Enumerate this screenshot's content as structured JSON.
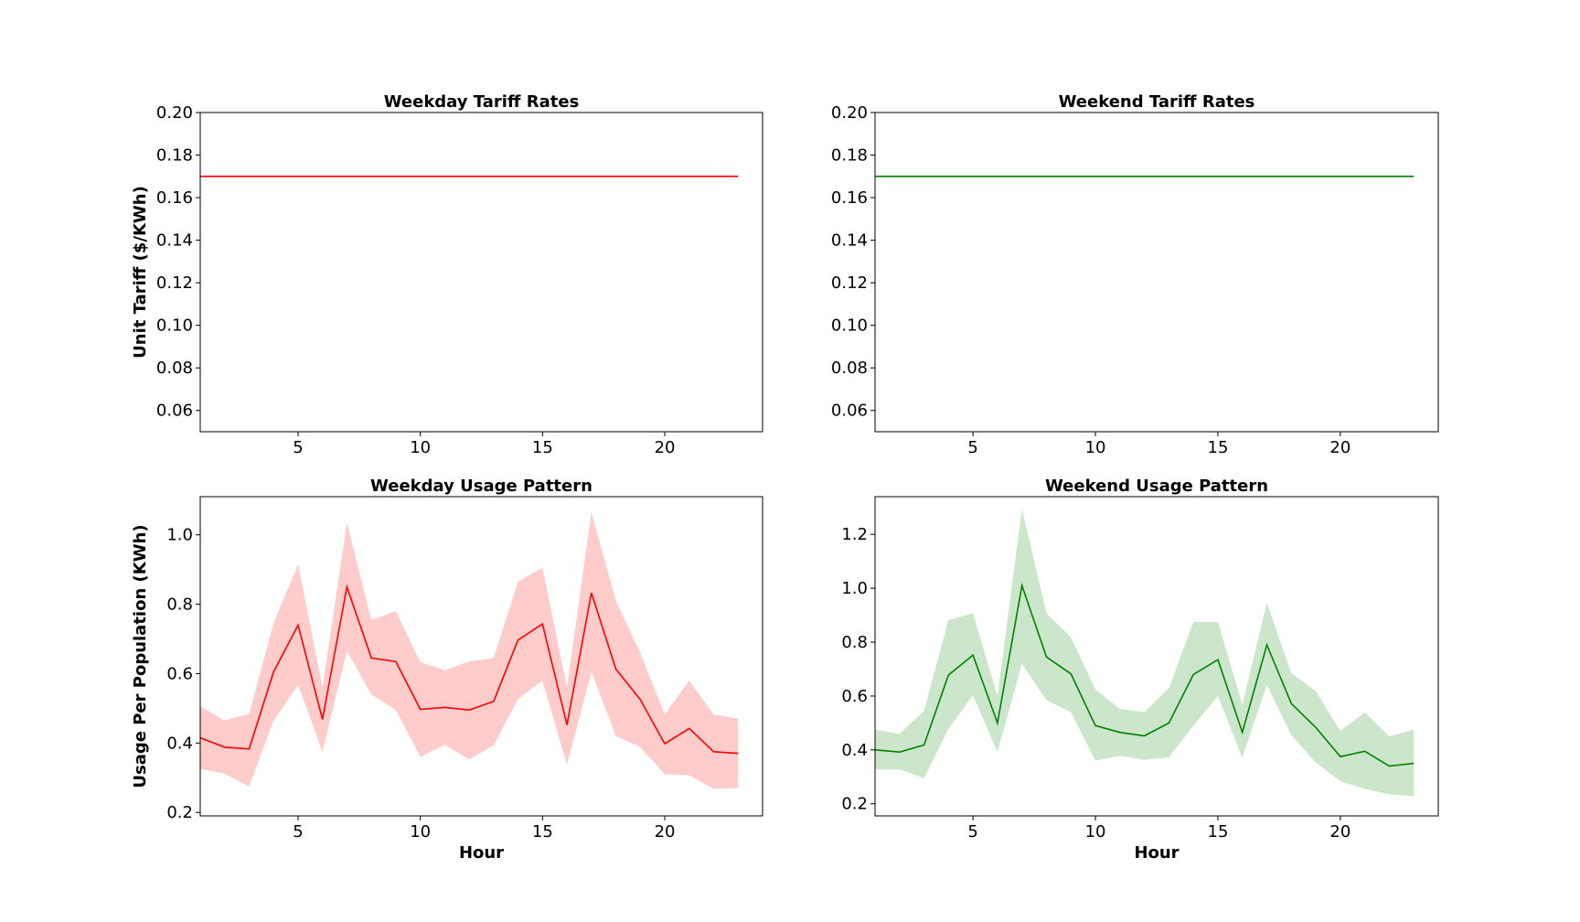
{
  "chart_data": [
    {
      "type": "line",
      "title": "Weekday Tariff Rates",
      "xlabel": "",
      "ylabel": "Unit Tariff ($/KWh)",
      "xlim": [
        1,
        24
      ],
      "ylim": [
        0.05,
        0.2
      ],
      "xticks": [
        5,
        10,
        15,
        20
      ],
      "yticks": [
        0.06,
        0.08,
        0.1,
        0.12,
        0.14,
        0.16,
        0.18,
        0.2
      ],
      "ytick_labels": [
        "0.06",
        "0.08",
        "0.10",
        "0.12",
        "0.14",
        "0.16",
        "0.18",
        "0.20"
      ],
      "color": "#ff0000",
      "band_color": "",
      "x": [
        1,
        23
      ],
      "y": [
        0.17,
        0.17
      ]
    },
    {
      "type": "line",
      "title": "Weekend Tariff Rates",
      "xlabel": "",
      "ylabel": "",
      "xlim": [
        1,
        24
      ],
      "ylim": [
        0.05,
        0.2
      ],
      "xticks": [
        5,
        10,
        15,
        20
      ],
      "yticks": [
        0.06,
        0.08,
        0.1,
        0.12,
        0.14,
        0.16,
        0.18,
        0.2
      ],
      "ytick_labels": [
        "0.06",
        "0.08",
        "0.10",
        "0.12",
        "0.14",
        "0.16",
        "0.18",
        "0.20"
      ],
      "color": "#008000",
      "band_color": "",
      "x": [
        1,
        23
      ],
      "y": [
        0.17,
        0.17
      ]
    },
    {
      "type": "area",
      "title": "Weekday Usage Pattern",
      "xlabel": "Hour",
      "ylabel": "Usage Per Population (KWh)",
      "xlim": [
        1,
        24
      ],
      "ylim": [
        0.19,
        1.11
      ],
      "xticks": [
        5,
        10,
        15,
        20
      ],
      "yticks": [
        0.2,
        0.4,
        0.6,
        0.8,
        1.0
      ],
      "ytick_labels": [
        "0.2",
        "0.4",
        "0.6",
        "0.8",
        "1.0"
      ],
      "color": "#ff0000",
      "band_color": "#ffcccc",
      "x": [
        1,
        2,
        3,
        4,
        5,
        6,
        7,
        8,
        9,
        10,
        11,
        12,
        13,
        14,
        15,
        16,
        17,
        18,
        19,
        20,
        21,
        22,
        23
      ],
      "y": [
        0.415,
        0.388,
        0.383,
        0.605,
        0.74,
        0.468,
        0.85,
        0.645,
        0.635,
        0.497,
        0.503,
        0.495,
        0.52,
        0.697,
        0.743,
        0.452,
        0.833,
        0.613,
        0.525,
        0.398,
        0.442,
        0.375,
        0.37
      ],
      "upper": [
        0.505,
        0.465,
        0.485,
        0.745,
        0.915,
        0.56,
        1.035,
        0.755,
        0.78,
        0.633,
        0.61,
        0.635,
        0.645,
        0.865,
        0.905,
        0.56,
        1.065,
        0.81,
        0.66,
        0.483,
        0.58,
        0.482,
        0.47
      ],
      "lower": [
        0.325,
        0.312,
        0.275,
        0.465,
        0.567,
        0.375,
        0.665,
        0.54,
        0.495,
        0.36,
        0.395,
        0.353,
        0.393,
        0.527,
        0.58,
        0.337,
        0.605,
        0.42,
        0.388,
        0.31,
        0.307,
        0.268,
        0.27
      ]
    },
    {
      "type": "area",
      "title": "Weekend Usage Pattern",
      "xlabel": "Hour",
      "ylabel": "",
      "xlim": [
        1,
        24
      ],
      "ylim": [
        0.155,
        1.34
      ],
      "xticks": [
        5,
        10,
        15,
        20
      ],
      "yticks": [
        0.2,
        0.4,
        0.6,
        0.8,
        1.0,
        1.2
      ],
      "ytick_labels": [
        "0.2",
        "0.4",
        "0.6",
        "0.8",
        "1.0",
        "1.2"
      ],
      "color": "#008000",
      "band_color": "#cce6cc",
      "x": [
        1,
        2,
        3,
        4,
        5,
        6,
        7,
        8,
        9,
        10,
        11,
        12,
        13,
        14,
        15,
        16,
        17,
        18,
        19,
        20,
        21,
        22,
        23
      ],
      "y": [
        0.4,
        0.392,
        0.418,
        0.678,
        0.752,
        0.5,
        1.01,
        0.745,
        0.682,
        0.49,
        0.465,
        0.452,
        0.5,
        0.68,
        0.735,
        0.465,
        0.79,
        0.572,
        0.483,
        0.375,
        0.395,
        0.34,
        0.35
      ],
      "upper": [
        0.475,
        0.46,
        0.545,
        0.882,
        0.907,
        0.6,
        1.295,
        0.907,
        0.818,
        0.625,
        0.552,
        0.54,
        0.63,
        0.875,
        0.875,
        0.568,
        0.945,
        0.685,
        0.618,
        0.47,
        0.54,
        0.45,
        0.475
      ],
      "lower": [
        0.327,
        0.327,
        0.295,
        0.478,
        0.603,
        0.392,
        0.72,
        0.585,
        0.54,
        0.36,
        0.378,
        0.363,
        0.372,
        0.49,
        0.6,
        0.37,
        0.642,
        0.455,
        0.353,
        0.283,
        0.255,
        0.235,
        0.228
      ]
    }
  ]
}
